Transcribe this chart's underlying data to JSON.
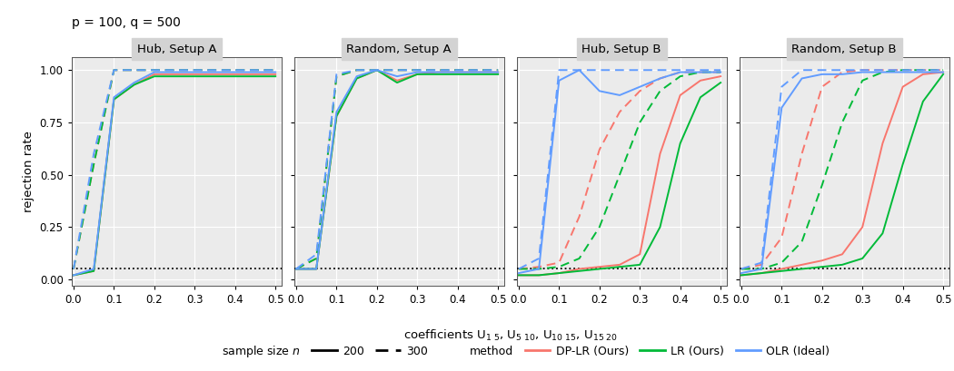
{
  "title": "p = 100, q = 500",
  "panels": [
    "Hub, Setup A",
    "Random, Setup A",
    "Hub, Setup B",
    "Random, Setup B"
  ],
  "ylabel": "rejection rate",
  "x": [
    0.0,
    0.05,
    0.1,
    0.15,
    0.2,
    0.25,
    0.3,
    0.35,
    0.4,
    0.45,
    0.5
  ],
  "colors": {
    "DP-LR (Ours)": "#F8766D",
    "LR (Ours)": "#00BA38",
    "OLR (Ideal)": "#619CFF"
  },
  "data": {
    "Hub, Setup A": {
      "solid": {
        "DP-LR (Ours)": [
          0.02,
          0.04,
          0.86,
          0.93,
          0.98,
          0.98,
          0.98,
          0.98,
          0.98,
          0.98,
          0.98
        ],
        "LR (Ours)": [
          0.02,
          0.04,
          0.86,
          0.93,
          0.97,
          0.97,
          0.97,
          0.97,
          0.97,
          0.97,
          0.97
        ],
        "OLR (Ideal)": [
          0.02,
          0.05,
          0.87,
          0.94,
          0.99,
          0.99,
          0.99,
          0.99,
          0.99,
          0.99,
          0.99
        ]
      },
      "dashed": {
        "DP-LR (Ours)": [
          0.05,
          0.55,
          1.0,
          1.0,
          1.0,
          1.0,
          1.0,
          1.0,
          1.0,
          1.0,
          1.0
        ],
        "LR (Ours)": [
          0.05,
          0.55,
          1.0,
          1.0,
          1.0,
          1.0,
          1.0,
          1.0,
          1.0,
          1.0,
          1.0
        ],
        "OLR (Ideal)": [
          0.05,
          0.6,
          1.0,
          1.0,
          1.0,
          1.0,
          1.0,
          1.0,
          1.0,
          1.0,
          1.0
        ]
      }
    },
    "Random, Setup A": {
      "solid": {
        "DP-LR (Ours)": [
          0.05,
          0.05,
          0.78,
          0.96,
          1.0,
          0.95,
          0.98,
          0.99,
          0.99,
          0.99,
          0.99
        ],
        "LR (Ours)": [
          0.05,
          0.05,
          0.78,
          0.96,
          1.0,
          0.94,
          0.98,
          0.98,
          0.98,
          0.98,
          0.98
        ],
        "OLR (Ideal)": [
          0.05,
          0.05,
          0.8,
          0.97,
          1.0,
          0.97,
          0.99,
          0.99,
          0.99,
          0.99,
          0.99
        ]
      },
      "dashed": {
        "DP-LR (Ours)": [
          0.05,
          0.1,
          0.97,
          1.0,
          1.0,
          1.0,
          1.0,
          1.0,
          1.0,
          1.0,
          1.0
        ],
        "LR (Ours)": [
          0.05,
          0.1,
          0.97,
          1.0,
          1.0,
          1.0,
          1.0,
          1.0,
          1.0,
          1.0,
          1.0
        ],
        "OLR (Ideal)": [
          0.05,
          0.12,
          0.98,
          1.0,
          1.0,
          1.0,
          1.0,
          1.0,
          1.0,
          1.0,
          1.0
        ]
      }
    },
    "Hub, Setup B": {
      "solid": {
        "DP-LR (Ours)": [
          0.02,
          0.02,
          0.03,
          0.05,
          0.06,
          0.07,
          0.12,
          0.6,
          0.88,
          0.95,
          0.97
        ],
        "LR (Ours)": [
          0.02,
          0.02,
          0.03,
          0.04,
          0.05,
          0.06,
          0.07,
          0.25,
          0.65,
          0.87,
          0.94
        ],
        "OLR (Ideal)": [
          0.03,
          0.05,
          0.95,
          1.0,
          0.9,
          0.88,
          0.92,
          0.96,
          0.99,
          0.99,
          0.99
        ]
      },
      "dashed": {
        "DP-LR (Ours)": [
          0.05,
          0.06,
          0.08,
          0.3,
          0.62,
          0.8,
          0.9,
          0.96,
          0.99,
          0.99,
          0.99
        ],
        "LR (Ours)": [
          0.05,
          0.05,
          0.06,
          0.1,
          0.25,
          0.5,
          0.75,
          0.9,
          0.97,
          0.99,
          0.99
        ],
        "OLR (Ideal)": [
          0.05,
          0.1,
          1.0,
          1.0,
          1.0,
          1.0,
          1.0,
          1.0,
          1.0,
          1.0,
          1.0
        ]
      }
    },
    "Random, Setup B": {
      "solid": {
        "DP-LR (Ours)": [
          0.02,
          0.03,
          0.05,
          0.07,
          0.09,
          0.12,
          0.25,
          0.65,
          0.92,
          0.98,
          0.99
        ],
        "LR (Ours)": [
          0.02,
          0.03,
          0.04,
          0.05,
          0.06,
          0.07,
          0.1,
          0.22,
          0.55,
          0.85,
          0.98
        ],
        "OLR (Ideal)": [
          0.03,
          0.05,
          0.82,
          0.96,
          0.98,
          0.98,
          0.99,
          0.99,
          0.99,
          0.99,
          0.99
        ]
      },
      "dashed": {
        "DP-LR (Ours)": [
          0.05,
          0.07,
          0.2,
          0.6,
          0.92,
          0.99,
          1.0,
          1.0,
          1.0,
          1.0,
          1.0
        ],
        "LR (Ours)": [
          0.05,
          0.05,
          0.08,
          0.18,
          0.45,
          0.75,
          0.95,
          0.99,
          1.0,
          1.0,
          1.0
        ],
        "OLR (Ideal)": [
          0.05,
          0.08,
          0.92,
          1.0,
          1.0,
          1.0,
          1.0,
          1.0,
          1.0,
          1.0,
          1.0
        ]
      }
    }
  },
  "background_color": "#EBEBEB",
  "panel_title_bg": "#D3D3D3",
  "grid_color": "#FFFFFF",
  "dotted_line_y": 0.05
}
